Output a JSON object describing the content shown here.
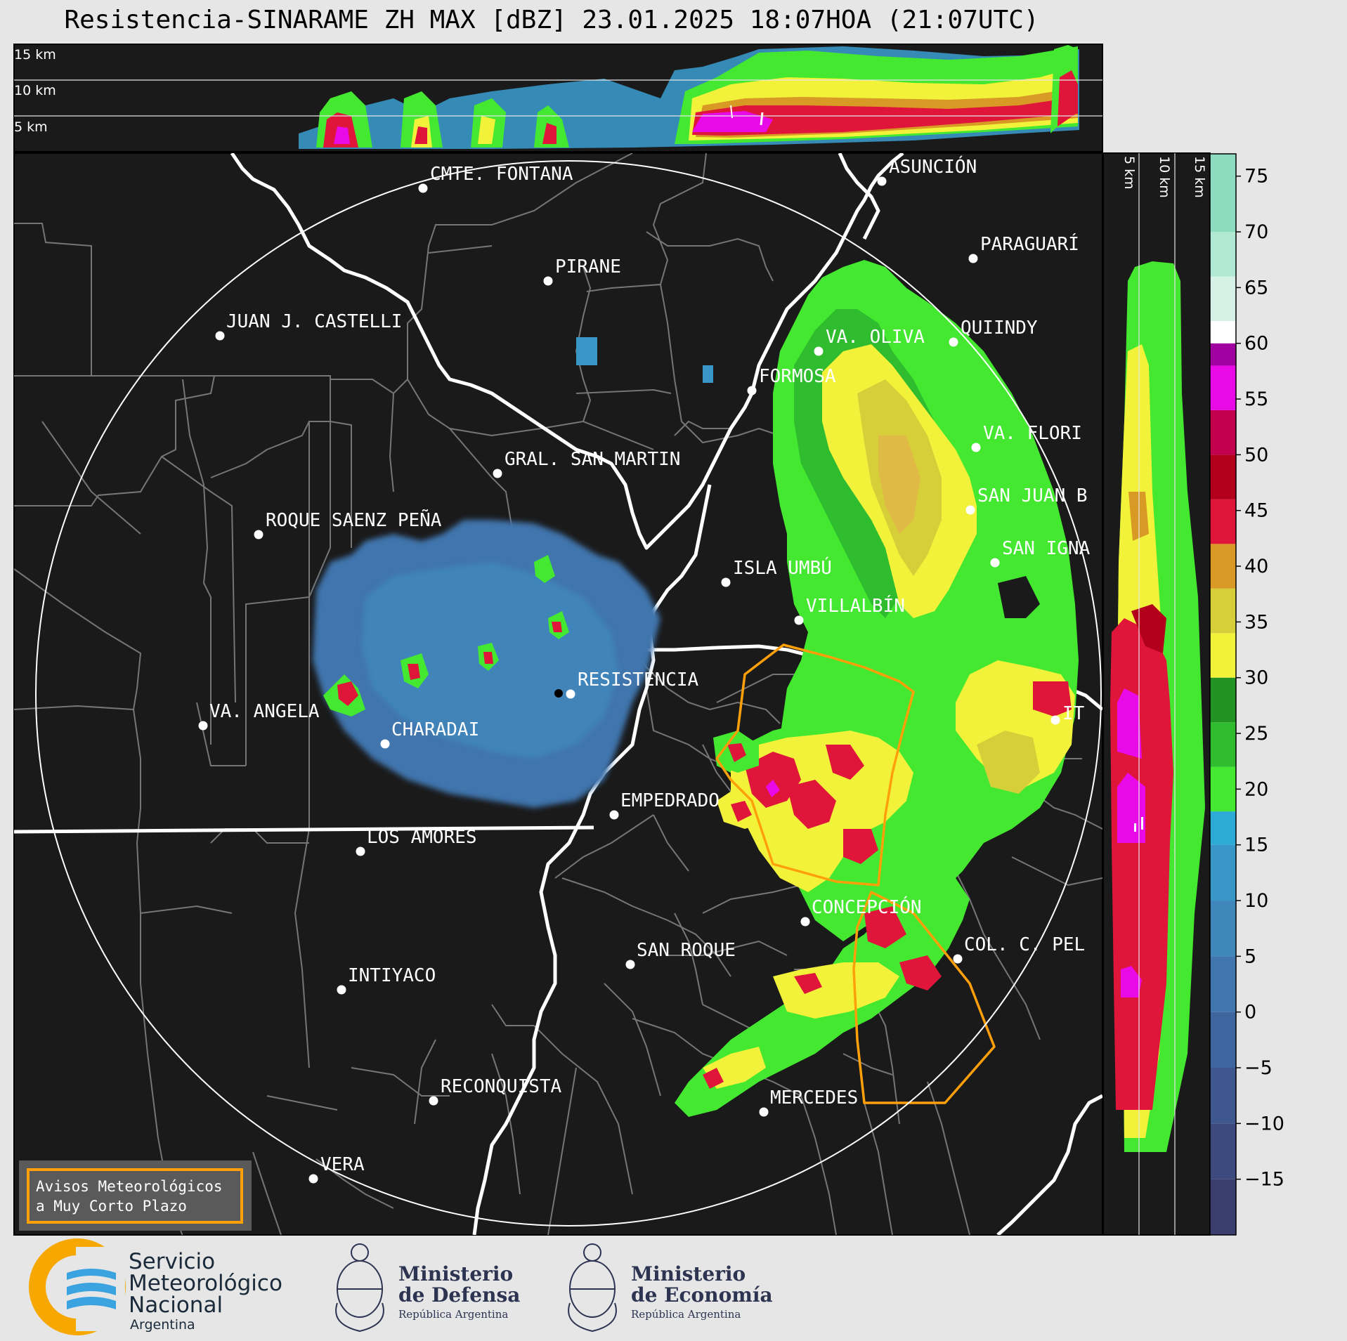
{
  "title": "Resistencia-SINARAME ZH MAX [dBZ] 23.01.2025 18:07HOA (21:07UTC)",
  "top_panel": {
    "height_labels": [
      "15 km",
      "10 km",
      "5 km"
    ]
  },
  "side_panel": {
    "height_labels": [
      "5 km",
      "10 km",
      "15 km"
    ]
  },
  "colorbar": {
    "unit": "dBZ",
    "ticks": [
      "75",
      "70",
      "65",
      "60",
      "55",
      "50",
      "45",
      "40",
      "35",
      "30",
      "25",
      "20",
      "15",
      "10",
      "5",
      "0",
      "−5",
      "−10",
      "−15"
    ],
    "range": [
      -20,
      77
    ],
    "stops": [
      {
        "from": -20,
        "color": "#3b3f6e"
      },
      {
        "from": -15,
        "color": "#3d4a7e"
      },
      {
        "from": -10,
        "color": "#3e578e"
      },
      {
        "from": -5,
        "color": "#3f659e"
      },
      {
        "from": 0,
        "color": "#4075ad"
      },
      {
        "from": 5,
        "color": "#3f86bb"
      },
      {
        "from": 10,
        "color": "#3997c8"
      },
      {
        "from": 15,
        "color": "#2eaad6"
      },
      {
        "from": 18,
        "color": "#44e830"
      },
      {
        "from": 22,
        "color": "#2fbd2f"
      },
      {
        "from": 26,
        "color": "#229222"
      },
      {
        "from": 30,
        "color": "#f2f23a"
      },
      {
        "from": 34,
        "color": "#d7cf3a"
      },
      {
        "from": 38,
        "color": "#d99a25"
      },
      {
        "from": 42,
        "color": "#e0153a"
      },
      {
        "from": 46,
        "color": "#b2001c"
      },
      {
        "from": 50,
        "color": "#c2004e"
      },
      {
        "from": 54,
        "color": "#e80be8"
      },
      {
        "from": 58,
        "color": "#a000a0"
      },
      {
        "from": 60,
        "color": "#ffffff"
      },
      {
        "from": 62,
        "color": "#d6f2e6"
      },
      {
        "from": 66,
        "color": "#b1e8d3"
      },
      {
        "from": 70,
        "color": "#8edcc0"
      }
    ]
  },
  "cities": [
    {
      "name": "CMTE. FONTANA"
    },
    {
      "name": "ASUNCIÓN"
    },
    {
      "name": "PARAGUARÍ"
    },
    {
      "name": "PIRANE"
    },
    {
      "name": "JUAN J. CASTELLI"
    },
    {
      "name": "QUIINDY"
    },
    {
      "name": "VA. OLIVA"
    },
    {
      "name": "FORMOSA"
    },
    {
      "name": "VA. FLORI"
    },
    {
      "name": "GRAL. SAN MARTIN"
    },
    {
      "name": "SAN JUAN B"
    },
    {
      "name": "ROQUE SAENZ PEÑA"
    },
    {
      "name": "SAN IGNA"
    },
    {
      "name": "ISLA UMBÚ"
    },
    {
      "name": "VILLALBÍN"
    },
    {
      "name": "RESISTENCIA"
    },
    {
      "name": "VA. ANGELA"
    },
    {
      "name": "CHARADAI"
    },
    {
      "name": "EMPEDRADO"
    },
    {
      "name": "LOS AMORES"
    },
    {
      "name": "CONCEPCIÓN"
    },
    {
      "name": "COL. C. PEL"
    },
    {
      "name": "SAN ROQUE"
    },
    {
      "name": "INTIYACO"
    },
    {
      "name": "RECONQUISTA"
    },
    {
      "name": "MERCEDES"
    },
    {
      "name": "VERA"
    },
    {
      "name": "IT"
    }
  ],
  "legend_box": {
    "line1": "Avisos Meteorológicos",
    "line2": "a Muy Corto Plazo"
  },
  "logos": {
    "smn": {
      "line1": "Servicio",
      "line2": "Meteorológico",
      "line3": "Nacional",
      "line4": "Argentina"
    },
    "defensa": {
      "line1": "Ministerio",
      "line2": "de Defensa",
      "line3": "República Argentina"
    },
    "economia": {
      "line1": "Ministerio",
      "line2": "de Economía",
      "line3": "República Argentina"
    }
  },
  "colors": {
    "map_background": "#1a1a1a",
    "warning_outline": "#ff9f0a",
    "smn_orange": "#f7a800",
    "smn_blue": "#3ba3e0",
    "ministry_navy": "#2d3452"
  }
}
